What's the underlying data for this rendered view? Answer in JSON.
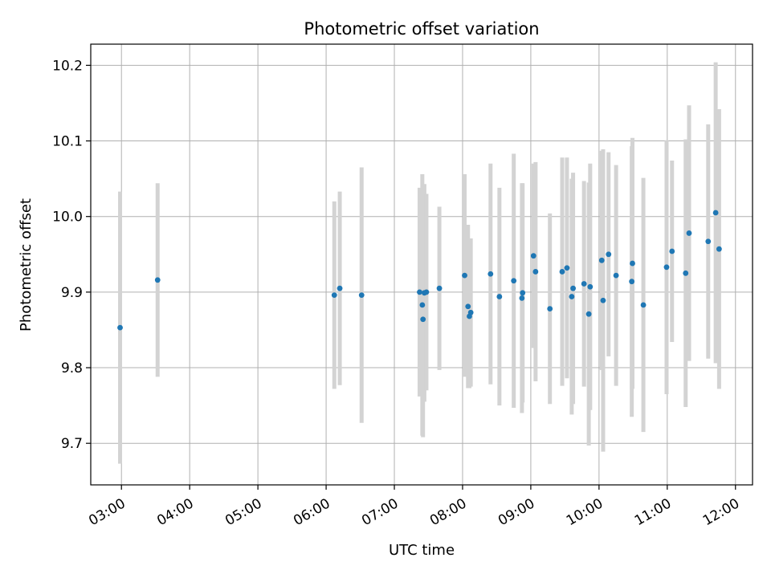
{
  "chart_data": {
    "type": "scatter",
    "title": "Photometric offset variation",
    "xlabel": "UTC time",
    "ylabel": "Photometric offset",
    "x_unit": "hours (UTC)",
    "xlim": [
      2.55,
      12.25
    ],
    "ylim": [
      9.645,
      10.228
    ],
    "x_ticks": [
      {
        "value": 3,
        "label": "03:00"
      },
      {
        "value": 4,
        "label": "04:00"
      },
      {
        "value": 5,
        "label": "05:00"
      },
      {
        "value": 6,
        "label": "06:00"
      },
      {
        "value": 7,
        "label": "07:00"
      },
      {
        "value": 8,
        "label": "08:00"
      },
      {
        "value": 9,
        "label": "09:00"
      },
      {
        "value": 10,
        "label": "10:00"
      },
      {
        "value": 11,
        "label": "11:00"
      },
      {
        "value": 12,
        "label": "12:00"
      }
    ],
    "y_ticks": [
      {
        "value": 9.7,
        "label": "9.7"
      },
      {
        "value": 9.8,
        "label": "9.8"
      },
      {
        "value": 9.9,
        "label": "9.9"
      },
      {
        "value": 10.0,
        "label": "10.0"
      },
      {
        "value": 10.1,
        "label": "10.1"
      },
      {
        "value": 10.2,
        "label": "10.2"
      }
    ],
    "grid": true,
    "point_color": "#1f77b4",
    "errorbar_color": "#d3d3d3",
    "series": [
      {
        "x": [
          2.98,
          3.53,
          6.12,
          6.2,
          6.52,
          7.37,
          7.41,
          7.42,
          7.44,
          7.47,
          7.66,
          8.03,
          8.08,
          8.1,
          8.12,
          8.41,
          8.54,
          8.75,
          8.87,
          8.88,
          9.04,
          9.07,
          9.28,
          9.46,
          9.53,
          9.6,
          9.62,
          9.78,
          9.85,
          9.87,
          10.04,
          10.06,
          10.14,
          10.25,
          10.48,
          10.49,
          10.65,
          10.99,
          11.07,
          11.27,
          11.32,
          11.6,
          11.71,
          11.76
        ],
        "y": [
          9.853,
          9.916,
          9.896,
          9.905,
          9.896,
          9.9,
          9.883,
          9.864,
          9.899,
          9.9,
          9.905,
          9.922,
          9.881,
          9.868,
          9.873,
          9.924,
          9.894,
          9.915,
          9.892,
          9.899,
          9.948,
          9.927,
          9.878,
          9.927,
          9.932,
          9.894,
          9.905,
          9.911,
          9.871,
          9.907,
          9.942,
          9.889,
          9.95,
          9.922,
          9.914,
          9.938,
          9.883,
          9.933,
          9.954,
          9.925,
          9.978,
          9.967,
          10.005,
          9.957
        ],
        "yerr": [
          0.18,
          0.128,
          0.124,
          0.128,
          0.169,
          0.138,
          0.173,
          0.156,
          0.144,
          0.13,
          0.108,
          0.134,
          0.108,
          0.095,
          0.098,
          0.146,
          0.144,
          0.168,
          0.152,
          0.145,
          0.122,
          0.145,
          0.126,
          0.151,
          0.146,
          0.156,
          0.153,
          0.136,
          0.174,
          0.163,
          0.145,
          0.2,
          0.135,
          0.146,
          0.179,
          0.166,
          0.168,
          0.168,
          0.12,
          0.177,
          0.169,
          0.155,
          0.199,
          0.185
        ]
      }
    ]
  }
}
